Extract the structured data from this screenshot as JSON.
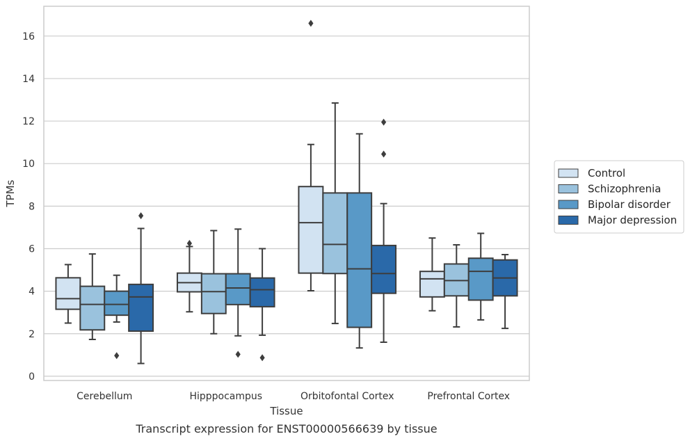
{
  "chart_data": {
    "type": "boxplot",
    "xlabel": "Tissue",
    "ylabel": "TPMs",
    "caption": "Transcript expression for ENST00000566639 by tissue",
    "ylim": [
      -0.2,
      17.4
    ],
    "yticks": [
      0,
      2,
      4,
      6,
      8,
      10,
      12,
      14,
      16
    ],
    "grid": "horizontal",
    "legend_position": "right",
    "categories": [
      "Cerebellum",
      "Hipppocampus",
      "Orbitofontal Cortex",
      "Prefrontal Cortex"
    ],
    "series": [
      {
        "name": "Control",
        "color": "#d2e3f2",
        "boxes": [
          {
            "whislo": 2.5,
            "q1": 3.15,
            "med": 3.65,
            "q3": 4.63,
            "whishi": 5.25,
            "fliers": []
          },
          {
            "whislo": 3.03,
            "q1": 3.97,
            "med": 4.4,
            "q3": 4.85,
            "whishi": 6.1,
            "fliers": [
              6.25
            ]
          },
          {
            "whislo": 4.02,
            "q1": 4.85,
            "med": 7.22,
            "q3": 8.92,
            "whishi": 10.9,
            "fliers": [
              16.6
            ]
          },
          {
            "whislo": 3.08,
            "q1": 3.73,
            "med": 4.58,
            "q3": 4.93,
            "whishi": 6.5,
            "fliers": []
          }
        ]
      },
      {
        "name": "Schizophrenia",
        "color": "#9ac2dd",
        "boxes": [
          {
            "whislo": 1.73,
            "q1": 2.18,
            "med": 3.38,
            "q3": 4.23,
            "whishi": 5.75,
            "fliers": []
          },
          {
            "whislo": 2.0,
            "q1": 2.95,
            "med": 3.98,
            "q3": 4.82,
            "whishi": 6.85,
            "fliers": []
          },
          {
            "whislo": 2.48,
            "q1": 4.83,
            "med": 6.2,
            "q3": 8.62,
            "whishi": 12.85,
            "fliers": []
          },
          {
            "whislo": 2.32,
            "q1": 3.78,
            "med": 4.5,
            "q3": 5.28,
            "whishi": 6.18,
            "fliers": []
          }
        ]
      },
      {
        "name": "Bipolar disorder",
        "color": "#5999c7",
        "boxes": [
          {
            "whislo": 2.55,
            "q1": 2.87,
            "med": 3.38,
            "q3": 4.0,
            "whishi": 4.75,
            "fliers": [
              0.97
            ]
          },
          {
            "whislo": 1.9,
            "q1": 3.37,
            "med": 4.15,
            "q3": 4.82,
            "whishi": 6.92,
            "fliers": [
              1.03
            ]
          },
          {
            "whislo": 1.33,
            "q1": 2.3,
            "med": 5.05,
            "q3": 8.62,
            "whishi": 11.4,
            "fliers": []
          },
          {
            "whislo": 2.65,
            "q1": 3.58,
            "med": 4.93,
            "q3": 5.55,
            "whishi": 6.72,
            "fliers": []
          }
        ]
      },
      {
        "name": "Major depression",
        "color": "#2a69a9",
        "boxes": [
          {
            "whislo": 0.6,
            "q1": 2.12,
            "med": 3.73,
            "q3": 4.32,
            "whishi": 6.95,
            "fliers": [
              7.55
            ]
          },
          {
            "whislo": 1.93,
            "q1": 3.27,
            "med": 4.07,
            "q3": 4.62,
            "whishi": 6.0,
            "fliers": [
              0.87
            ]
          },
          {
            "whislo": 1.6,
            "q1": 3.9,
            "med": 4.83,
            "q3": 6.15,
            "whishi": 8.12,
            "fliers": [
              10.45,
              11.95
            ]
          },
          {
            "whislo": 2.25,
            "q1": 3.78,
            "med": 4.62,
            "q3": 5.47,
            "whishi": 5.72,
            "fliers": []
          }
        ]
      }
    ]
  }
}
